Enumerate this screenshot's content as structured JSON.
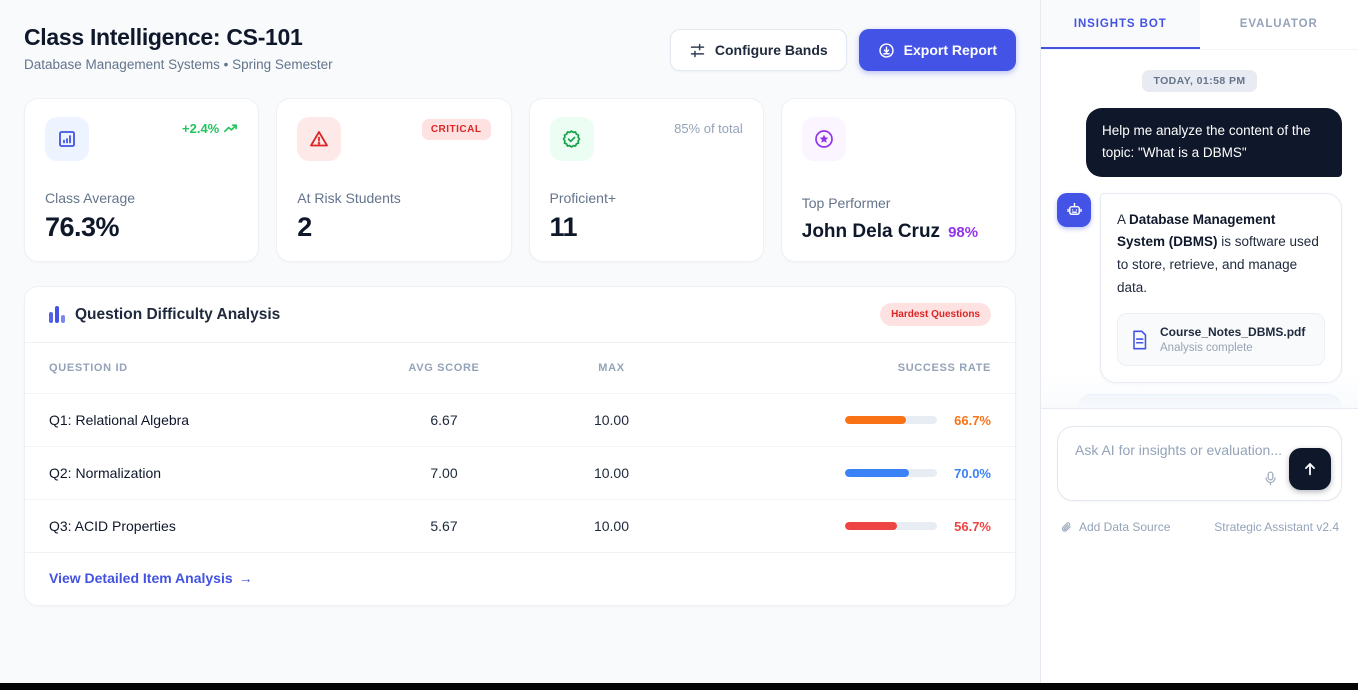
{
  "colors": {
    "accent": "#4353e5",
    "green": "#22c55e",
    "red": "#dc2626",
    "purple": "#9333ea",
    "dark": "#0f172a"
  },
  "header": {
    "title": "Class Intelligence: CS-101",
    "subtitle": "Database Management Systems • Spring Semester",
    "configure_label": "Configure Bands",
    "export_label": "Export Report"
  },
  "stats": {
    "class_average": {
      "label": "Class Average",
      "value": "76.3%",
      "trend": "+2.4%",
      "icon": "bar-chart-square-icon"
    },
    "at_risk": {
      "label": "At Risk Students",
      "value": "2",
      "badge": "CRITICAL",
      "icon": "alert-triangle-icon"
    },
    "proficient": {
      "label": "Proficient+",
      "value": "11",
      "meta": "85% of total",
      "icon": "badge-check-icon"
    },
    "top_performer": {
      "label": "Top Performer",
      "value": "John Dela Cruz",
      "score": "98%",
      "icon": "star-circle-icon"
    }
  },
  "difficulty": {
    "title": "Question Difficulty Analysis",
    "badge": "Hardest Questions",
    "columns": {
      "c0": "QUESTION ID",
      "c1": "AVG SCORE",
      "c2": "MAX",
      "c3": "SUCCESS RATE"
    },
    "rows": [
      {
        "question": "Q1: Relational Algebra",
        "avg": "6.67",
        "max": "10.00",
        "rate": "66.7%",
        "rate_value": 66.7,
        "color": "#f97316"
      },
      {
        "question": "Q2: Normalization",
        "avg": "7.00",
        "max": "10.00",
        "rate": "70.0%",
        "rate_value": 70.0,
        "color": "#3b82f6"
      },
      {
        "question": "Q3: ACID Properties",
        "avg": "5.67",
        "max": "10.00",
        "rate": "56.7%",
        "rate_value": 56.7,
        "color": "#ef4444"
      }
    ],
    "footer_link": "View Detailed Item Analysis",
    "footer_arrow": "→"
  },
  "sidebar": {
    "tabs": {
      "insights": "INSIGHTS BOT",
      "evaluator": "EVALUATOR"
    },
    "timestamp": "TODAY, 01:58 PM",
    "user_message": "Help me analyze the content of the topic: \"What is a DBMS\"",
    "bot_message": {
      "pre": "A ",
      "bold": "Database Management System (DBMS)",
      "post": " is software used to store, retrieve, and manage data."
    },
    "attachment": {
      "name": "Course_Notes_DBMS.pdf",
      "status": "Analysis complete"
    },
    "input_placeholder": "Ask AI for insights or evaluation...",
    "footer_left": "Add Data Source",
    "footer_right": "Strategic Assistant v2.4"
  }
}
